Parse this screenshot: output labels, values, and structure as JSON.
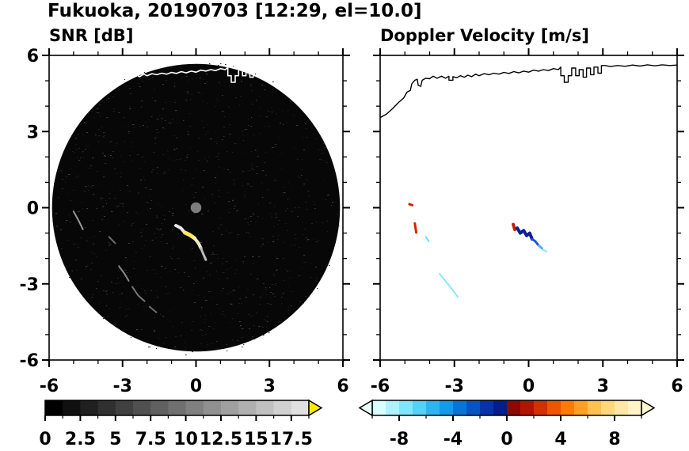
{
  "title": "Fukuoka, 20190703 [12:29, el=10.0]",
  "coastline": [
    [
      -6,
      3.55
    ],
    [
      -5.75,
      3.68
    ],
    [
      -5.5,
      3.9
    ],
    [
      -5.25,
      4.15
    ],
    [
      -5.05,
      4.32
    ],
    [
      -4.92,
      4.55
    ],
    [
      -4.78,
      4.62
    ],
    [
      -4.72,
      4.88
    ],
    [
      -4.6,
      5.02
    ],
    [
      -4.5,
      5.06
    ],
    [
      -4.46,
      4.82
    ],
    [
      -4.36,
      4.78
    ],
    [
      -4.3,
      5.02
    ],
    [
      -4.16,
      5.1
    ],
    [
      -4.0,
      5.08
    ],
    [
      -3.86,
      5.18
    ],
    [
      -3.7,
      5.1
    ],
    [
      -3.52,
      5.18
    ],
    [
      -3.36,
      5.1
    ],
    [
      -3.22,
      5.18
    ],
    [
      -3.22,
      5.02
    ],
    [
      -3.06,
      5.02
    ],
    [
      -3.06,
      5.16
    ],
    [
      -2.9,
      5.12
    ],
    [
      -2.76,
      5.2
    ],
    [
      -2.6,
      5.14
    ],
    [
      -2.46,
      5.22
    ],
    [
      -2.3,
      5.16
    ],
    [
      -2.14,
      5.26
    ],
    [
      -2.0,
      5.2
    ],
    [
      -1.8,
      5.28
    ],
    [
      -1.6,
      5.24
    ],
    [
      -1.4,
      5.3
    ],
    [
      -1.2,
      5.26
    ],
    [
      -1.0,
      5.33
    ],
    [
      -0.8,
      5.29
    ],
    [
      -0.6,
      5.36
    ],
    [
      -0.4,
      5.31
    ],
    [
      -0.2,
      5.38
    ],
    [
      0.0,
      5.34
    ],
    [
      0.2,
      5.42
    ],
    [
      0.4,
      5.38
    ],
    [
      0.6,
      5.44
    ],
    [
      0.8,
      5.4
    ],
    [
      1.0,
      5.48
    ],
    [
      1.2,
      5.44
    ],
    [
      1.3,
      5.54
    ],
    [
      1.3,
      5.2
    ],
    [
      1.44,
      5.2
    ],
    [
      1.44,
      4.94
    ],
    [
      1.6,
      4.94
    ],
    [
      1.6,
      5.2
    ],
    [
      1.74,
      5.2
    ],
    [
      1.74,
      5.5
    ],
    [
      1.9,
      5.5
    ],
    [
      1.9,
      5.2
    ],
    [
      2.04,
      5.2
    ],
    [
      2.04,
      5.44
    ],
    [
      2.2,
      5.44
    ],
    [
      2.2,
      5.14
    ],
    [
      2.34,
      5.14
    ],
    [
      2.34,
      5.5
    ],
    [
      2.5,
      5.5
    ],
    [
      2.5,
      5.24
    ],
    [
      2.64,
      5.24
    ],
    [
      2.64,
      5.54
    ],
    [
      2.8,
      5.54
    ],
    [
      2.8,
      5.3
    ],
    [
      2.94,
      5.3
    ],
    [
      2.94,
      5.6
    ],
    [
      3.1,
      5.6
    ],
    [
      3.3,
      5.56
    ],
    [
      3.6,
      5.6
    ],
    [
      3.9,
      5.57
    ],
    [
      4.2,
      5.62
    ],
    [
      4.5,
      5.58
    ],
    [
      4.8,
      5.63
    ],
    [
      5.1,
      5.59
    ],
    [
      5.4,
      5.63
    ],
    [
      5.7,
      5.6
    ],
    [
      6.0,
      5.62
    ]
  ],
  "chart_data": [
    {
      "type": "heatmap",
      "title": "SNR [dB]",
      "xlim": [
        -6,
        6
      ],
      "ylim": [
        -6,
        6
      ],
      "xticks": [
        -6,
        -3,
        0,
        3,
        6
      ],
      "xtick_labels": [
        "-6",
        "-3",
        "0",
        "3",
        "6"
      ],
      "yticks": [
        -6,
        -3,
        0,
        3,
        6
      ],
      "ytick_labels": [
        "6",
        "3",
        "0",
        "-3",
        "-6"
      ],
      "ytick_label_values": [
        6,
        3,
        0,
        -3,
        -6
      ],
      "show_ytick_labels": true,
      "minor_step": 1,
      "coast_color": "#ffffff",
      "scan": {
        "center": [
          0,
          0
        ],
        "radius": 5.88,
        "color": "#070707"
      },
      "center_dot": {
        "x": 0,
        "y": 0,
        "r": 0.22,
        "color": "#7d7d7d"
      },
      "noise": {
        "count": 950,
        "seed": 73,
        "colors": [
          "#161616",
          "#222222",
          "#2e2e2e",
          "#3b3b3b",
          "#1c1c1c"
        ]
      },
      "faint_echoes": [
        {
          "pts": [
            [
              -5.0,
              -0.15
            ],
            [
              -4.8,
              -0.5
            ],
            [
              -4.62,
              -0.85
            ]
          ],
          "color": "#9a9a9a",
          "w": 2
        },
        {
          "pts": [
            [
              -3.55,
              -1.15
            ],
            [
              -3.3,
              -1.4
            ]
          ],
          "color": "#6e6e6e",
          "w": 2
        },
        {
          "pts": [
            [
              -3.15,
              -2.3
            ],
            [
              -2.92,
              -2.6
            ],
            [
              -2.75,
              -2.88
            ]
          ],
          "color": "#8a8a8a",
          "w": 2
        },
        {
          "pts": [
            [
              -2.6,
              -3.12
            ],
            [
              -2.36,
              -3.46
            ],
            [
              -2.1,
              -3.68
            ]
          ],
          "color": "#787878",
          "w": 2
        },
        {
          "pts": [
            [
              -1.9,
              -3.9
            ],
            [
              -1.62,
              -4.12
            ]
          ],
          "color": "#6a6a6a",
          "w": 2
        }
      ],
      "bright_echo": [
        {
          "pts": [
            [
              -0.82,
              -0.7
            ],
            [
              -0.62,
              -0.8
            ],
            [
              -0.46,
              -0.98
            ]
          ],
          "color": "#e9e9e9",
          "w": 4
        },
        {
          "pts": [
            [
              -0.46,
              -0.98
            ],
            [
              -0.26,
              -1.07
            ],
            [
              -0.06,
              -1.2
            ]
          ],
          "color": "#ffe95d",
          "w": 5
        },
        {
          "pts": [
            [
              -0.06,
              -1.2
            ],
            [
              0.1,
              -1.4
            ],
            [
              0.2,
              -1.6
            ]
          ],
          "color": "#f2ecc4",
          "w": 4
        },
        {
          "pts": [
            [
              0.2,
              -1.6
            ],
            [
              0.3,
              -1.83
            ],
            [
              0.4,
              -2.05
            ]
          ],
          "color": "#b9b9b9",
          "w": 3
        }
      ],
      "colorbar": {
        "range": [
          0,
          18.75
        ],
        "segment_step": 1.25,
        "minor_step": 1.25,
        "tick_values": [
          0,
          2.5,
          5,
          7.5,
          10,
          12.5,
          15,
          17.5
        ],
        "tick_labels": [
          "0",
          "2.5",
          "5",
          "7.5",
          "10",
          "12.5",
          "15",
          "17.5"
        ],
        "palette": "grayscale-black-to-lightgray",
        "over_arrow_color": "#ffe800"
      }
    },
    {
      "type": "scatter",
      "title": "Doppler Velocity [m/s]",
      "xlim": [
        -6,
        6
      ],
      "ylim": [
        -6,
        6
      ],
      "xticks": [
        -6,
        -3,
        0,
        3,
        6
      ],
      "xtick_labels": [
        "-6",
        "-3",
        "0",
        "3",
        "6"
      ],
      "yticks": [
        -6,
        -3,
        0,
        3,
        6
      ],
      "ytick_labels": [
        "6",
        "3",
        "0",
        "-3",
        "-6"
      ],
      "ytick_label_values": [
        6,
        3,
        0,
        -3,
        -6
      ],
      "show_ytick_labels": false,
      "minor_step": 1,
      "coast_color": "#000000",
      "echoes": [
        {
          "pts": [
            [
              -4.82,
              0.14
            ],
            [
              -4.7,
              0.1
            ]
          ],
          "color": "#cc2200",
          "w": 3
        },
        {
          "pts": [
            [
              -4.6,
              -0.62
            ],
            [
              -4.54,
              -0.98
            ]
          ],
          "color": "#d62400",
          "w": 3
        },
        {
          "pts": [
            [
              -4.15,
              -1.15
            ],
            [
              -4.04,
              -1.32
            ]
          ],
          "color": "#6fdcf5",
          "w": 2
        },
        {
          "pts": [
            [
              -3.6,
              -2.6
            ],
            [
              -3.35,
              -2.9
            ],
            [
              -3.1,
              -3.2
            ],
            [
              -2.86,
              -3.52
            ]
          ],
          "color": "#8ae8f2",
          "w": 2
        },
        {
          "pts": [
            [
              -0.62,
              -0.66
            ],
            [
              -0.56,
              -0.86
            ]
          ],
          "color": "#c21f00",
          "w": 4
        },
        {
          "pts": [
            [
              -0.46,
              -0.8
            ],
            [
              -0.34,
              -1.0
            ],
            [
              -0.2,
              -0.9
            ],
            [
              -0.08,
              -1.1
            ],
            [
              0.04,
              -1.0
            ],
            [
              0.14,
              -1.24
            ]
          ],
          "color": "#0a1e96",
          "w": 4
        },
        {
          "pts": [
            [
              0.14,
              -1.24
            ],
            [
              0.27,
              -1.32
            ],
            [
              0.38,
              -1.46
            ]
          ],
          "color": "#1e55d8",
          "w": 3
        },
        {
          "pts": [
            [
              0.42,
              -1.5
            ],
            [
              0.54,
              -1.6
            ]
          ],
          "color": "#4fb4ec",
          "w": 3
        },
        {
          "pts": [
            [
              0.58,
              -1.66
            ],
            [
              0.72,
              -1.72
            ]
          ],
          "color": "#8ae4f5",
          "w": 2
        }
      ],
      "colorbar": {
        "range": [
          -10,
          10
        ],
        "segment_step": 1,
        "minor_step": 2,
        "tick_values": [
          -8,
          -4,
          0,
          4,
          8
        ],
        "tick_labels": [
          "-8",
          "-4",
          "0",
          "4",
          "8"
        ],
        "segment_colors": [
          "#d8fdff",
          "#aef2ff",
          "#7fe6fb",
          "#55d0f7",
          "#2fb4f0",
          "#149ae6",
          "#0a74d6",
          "#0852c2",
          "#0634a6",
          "#041e88",
          "#8c0800",
          "#b21400",
          "#d33000",
          "#ef5400",
          "#ff7b00",
          "#ffa022",
          "#ffc14f",
          "#ffd87e",
          "#ffe8a6",
          "#fff3c8"
        ],
        "under_arrow_color": "#e8fdff",
        "over_arrow_color": "#fff6cf"
      }
    }
  ]
}
